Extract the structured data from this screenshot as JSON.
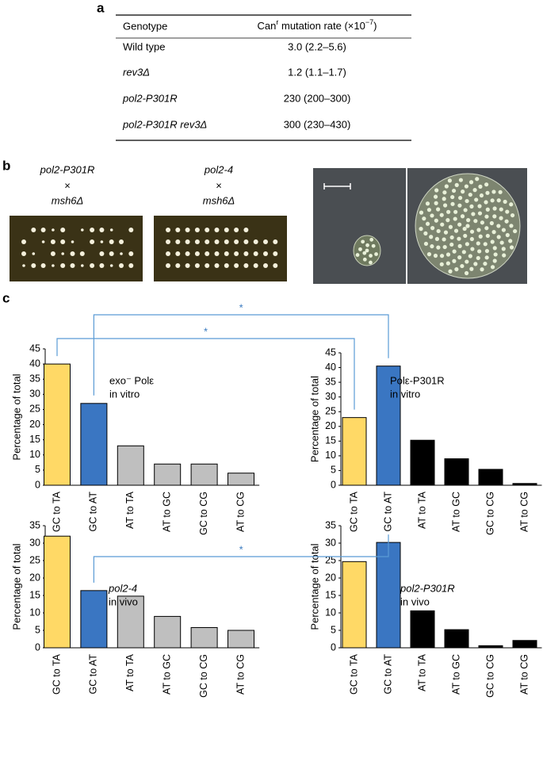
{
  "panel_labels": [
    "a",
    "b",
    "c"
  ],
  "table": {
    "header": [
      "Genotype",
      [
        "Can",
        "r",
        " mutation rate (×10",
        "−7",
        ")"
      ]
    ],
    "rows": [
      [
        "Wild type",
        "3.0 (2.2–5.6)"
      ],
      [
        "rev3Δ",
        "1.2 (1.1–1.7)"
      ],
      [
        "pol2-P301R",
        "230 (200–300)"
      ],
      [
        "pol2-P301R rev3Δ",
        "300 (230–430)"
      ]
    ]
  },
  "crosses": [
    [
      "pol2-P301R",
      "×",
      "msh6Δ"
    ],
    [
      "pol2-4",
      "×",
      "msh6Δ"
    ]
  ],
  "significance": [
    "*",
    "*",
    "*"
  ],
  "chart_data": [
    {
      "type": "bar",
      "annotation": [
        "exo⁻ Polε",
        "in vitro"
      ],
      "annotation_italic": false,
      "ylabel": "Percentage of total",
      "categories": [
        "GC to TA",
        "GC to AT",
        "AT to TA",
        "AT to GC",
        "GC to CG",
        "AT to CG"
      ],
      "values": [
        40,
        27,
        13,
        7,
        7,
        4
      ],
      "colors": [
        "#ffd966",
        "#3a76c2",
        "#bfbfbf",
        "#bfbfbf",
        "#bfbfbf",
        "#bfbfbf"
      ],
      "ylim": [
        0,
        45
      ],
      "yticks": [
        0,
        5,
        10,
        15,
        20,
        25,
        30,
        35,
        40,
        45
      ]
    },
    {
      "type": "bar",
      "annotation": [
        "Polε-P301R",
        "in vitro"
      ],
      "annotation_italic": false,
      "ylabel": "Percentage of total",
      "categories": [
        "GC to TA",
        "GC to AT",
        "AT to TA",
        "AT to GC",
        "GC to CG",
        "AT to CG"
      ],
      "values": [
        23,
        40.5,
        15.3,
        9,
        5.4,
        0.6
      ],
      "colors": [
        "#ffd966",
        "#3a76c2",
        "#000000",
        "#000000",
        "#000000",
        "#000000"
      ],
      "ylim": [
        0,
        45
      ],
      "yticks": [
        0,
        5,
        10,
        15,
        20,
        25,
        30,
        35,
        40,
        45
      ]
    },
    {
      "type": "bar",
      "annotation": [
        "pol2-4",
        "in vivo"
      ],
      "annotation_italic": true,
      "ylabel": "Percentage of total",
      "categories": [
        "GC to TA",
        "GC to AT",
        "AT to TA",
        "AT to GC",
        "GC to CG",
        "AT to CG"
      ],
      "values": [
        32,
        16.4,
        14.8,
        9,
        5.8,
        5
      ],
      "colors": [
        "#ffd966",
        "#3a76c2",
        "#bfbfbf",
        "#bfbfbf",
        "#bfbfbf",
        "#bfbfbf"
      ],
      "ylim": [
        0,
        35
      ],
      "yticks": [
        0,
        5,
        10,
        15,
        20,
        25,
        30,
        35
      ]
    },
    {
      "type": "bar",
      "annotation": [
        "pol2-P301R",
        "in vivo"
      ],
      "annotation_italic": true,
      "ylabel": "Percentage of total",
      "categories": [
        "GC to TA",
        "GC to AT",
        "AT to TA",
        "AT to GC",
        "GC to CG",
        "AT to CG"
      ],
      "values": [
        24.7,
        30.2,
        10.6,
        5.2,
        0.6,
        2.1
      ],
      "colors": [
        "#ffd966",
        "#3a76c2",
        "#000000",
        "#000000",
        "#000000",
        "#000000"
      ],
      "ylim": [
        0,
        35
      ],
      "yticks": [
        0,
        5,
        10,
        15,
        20,
        25,
        30,
        35
      ]
    }
  ]
}
